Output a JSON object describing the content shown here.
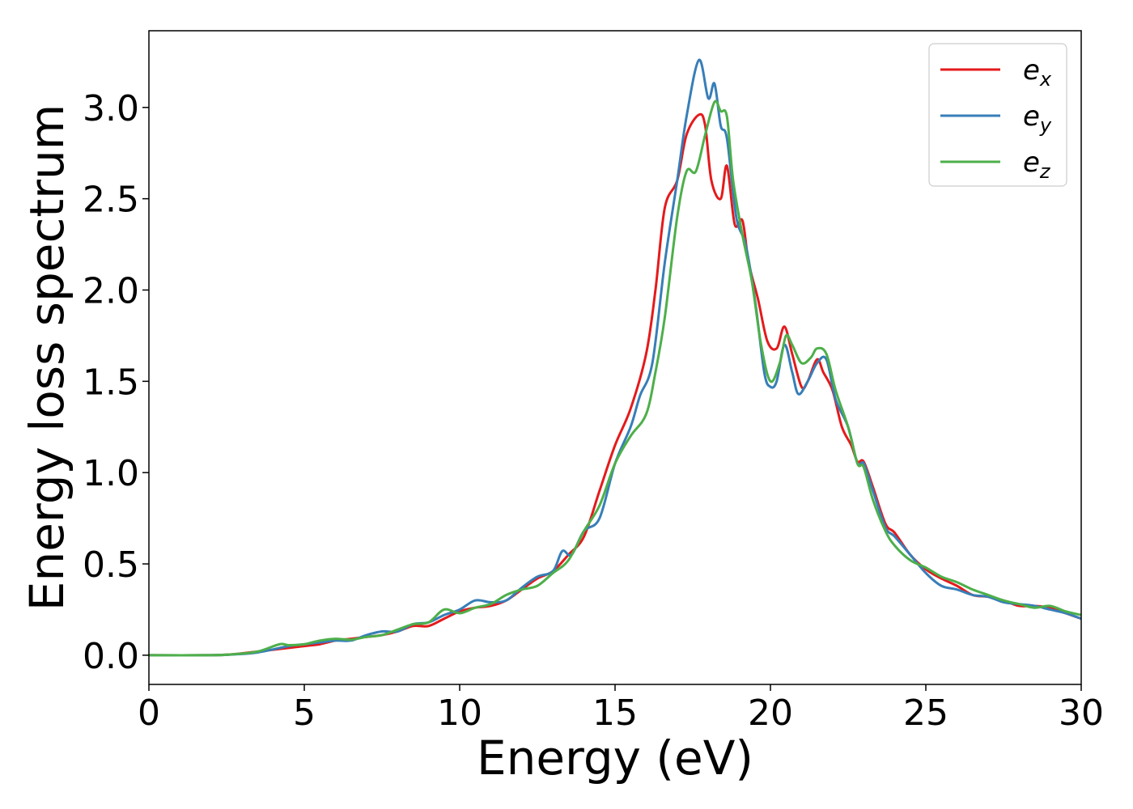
{
  "chart_data": {
    "type": "line",
    "xlabel": "Energy (eV)",
    "ylabel": "Energy loss spectrum",
    "xlim": [
      0,
      30
    ],
    "ylim": [
      -0.16,
      3.42
    ],
    "xticks": [
      "0",
      "5",
      "10",
      "15",
      "20",
      "25",
      "30"
    ],
    "yticks": [
      "0.0",
      "0.5",
      "1.0",
      "1.5",
      "2.0",
      "2.5",
      "3.0"
    ],
    "grid": false,
    "legend_position": "top-right",
    "series": [
      {
        "name": "e_x",
        "label_main": "e",
        "label_sub": "x",
        "color": "#e41a1c",
        "points": [
          [
            0,
            0
          ],
          [
            2,
            0
          ],
          [
            2.7,
            0.005
          ],
          [
            3.5,
            0.02
          ],
          [
            4.5,
            0.04
          ],
          [
            5,
            0.05
          ],
          [
            5.5,
            0.06
          ],
          [
            6,
            0.08
          ],
          [
            6.5,
            0.09
          ],
          [
            7,
            0.1
          ],
          [
            7.5,
            0.11
          ],
          [
            8,
            0.13
          ],
          [
            8.5,
            0.16
          ],
          [
            9,
            0.16
          ],
          [
            9.5,
            0.2
          ],
          [
            10,
            0.24
          ],
          [
            10.5,
            0.26
          ],
          [
            11,
            0.27
          ],
          [
            11.5,
            0.3
          ],
          [
            12,
            0.36
          ],
          [
            12.5,
            0.42
          ],
          [
            13,
            0.46
          ],
          [
            13.5,
            0.55
          ],
          [
            14,
            0.65
          ],
          [
            14.5,
            0.9
          ],
          [
            15,
            1.15
          ],
          [
            15.5,
            1.35
          ],
          [
            16,
            1.65
          ],
          [
            16.3,
            2.0
          ],
          [
            16.6,
            2.45
          ],
          [
            17,
            2.6
          ],
          [
            17.3,
            2.85
          ],
          [
            17.7,
            2.96
          ],
          [
            17.9,
            2.9
          ],
          [
            18.1,
            2.6
          ],
          [
            18.4,
            2.5
          ],
          [
            18.6,
            2.68
          ],
          [
            18.85,
            2.36
          ],
          [
            19.1,
            2.38
          ],
          [
            19.3,
            2.15
          ],
          [
            19.6,
            1.95
          ],
          [
            19.9,
            1.72
          ],
          [
            20.2,
            1.68
          ],
          [
            20.45,
            1.8
          ],
          [
            20.7,
            1.65
          ],
          [
            21,
            1.47
          ],
          [
            21.2,
            1.5
          ],
          [
            21.5,
            1.62
          ],
          [
            21.7,
            1.55
          ],
          [
            22,
            1.45
          ],
          [
            22.3,
            1.25
          ],
          [
            22.6,
            1.15
          ],
          [
            22.8,
            1.06
          ],
          [
            23,
            1.06
          ],
          [
            23.3,
            0.92
          ],
          [
            23.7,
            0.72
          ],
          [
            24,
            0.67
          ],
          [
            24.5,
            0.55
          ],
          [
            25,
            0.47
          ],
          [
            25.5,
            0.42
          ],
          [
            26,
            0.38
          ],
          [
            26.5,
            0.33
          ],
          [
            27,
            0.32
          ],
          [
            27.5,
            0.3
          ],
          [
            28,
            0.27
          ],
          [
            28.5,
            0.27
          ],
          [
            29,
            0.26
          ],
          [
            29.5,
            0.23
          ],
          [
            30,
            0.2
          ]
        ]
      },
      {
        "name": "e_y",
        "label_main": "e",
        "label_sub": "y",
        "color": "#377eb8",
        "points": [
          [
            0,
            0
          ],
          [
            2,
            0
          ],
          [
            2.8,
            0.005
          ],
          [
            3.5,
            0.015
          ],
          [
            4.5,
            0.05
          ],
          [
            5,
            0.06
          ],
          [
            5.5,
            0.07
          ],
          [
            6,
            0.08
          ],
          [
            6.5,
            0.08
          ],
          [
            7,
            0.11
          ],
          [
            7.5,
            0.13
          ],
          [
            8,
            0.13
          ],
          [
            8.5,
            0.17
          ],
          [
            9,
            0.18
          ],
          [
            9.5,
            0.22
          ],
          [
            10,
            0.25
          ],
          [
            10.5,
            0.3
          ],
          [
            11,
            0.29
          ],
          [
            11.5,
            0.3
          ],
          [
            12,
            0.37
          ],
          [
            12.5,
            0.43
          ],
          [
            13,
            0.46
          ],
          [
            13.3,
            0.57
          ],
          [
            13.6,
            0.55
          ],
          [
            14,
            0.68
          ],
          [
            14.5,
            0.75
          ],
          [
            15,
            1.05
          ],
          [
            15.5,
            1.25
          ],
          [
            15.8,
            1.42
          ],
          [
            16.2,
            1.6
          ],
          [
            16.6,
            2.15
          ],
          [
            17,
            2.6
          ],
          [
            17.3,
            2.95
          ],
          [
            17.7,
            3.26
          ],
          [
            18,
            3.05
          ],
          [
            18.2,
            3.13
          ],
          [
            18.4,
            2.9
          ],
          [
            18.6,
            2.83
          ],
          [
            18.9,
            2.4
          ],
          [
            19.2,
            2.25
          ],
          [
            19.5,
            1.95
          ],
          [
            19.8,
            1.55
          ],
          [
            20,
            1.47
          ],
          [
            20.2,
            1.5
          ],
          [
            20.45,
            1.7
          ],
          [
            20.7,
            1.55
          ],
          [
            20.9,
            1.43
          ],
          [
            21.2,
            1.5
          ],
          [
            21.5,
            1.6
          ],
          [
            21.8,
            1.62
          ],
          [
            22.1,
            1.4
          ],
          [
            22.5,
            1.25
          ],
          [
            22.8,
            1.05
          ],
          [
            23,
            1.05
          ],
          [
            23.3,
            0.9
          ],
          [
            23.7,
            0.7
          ],
          [
            24,
            0.65
          ],
          [
            24.5,
            0.55
          ],
          [
            25,
            0.45
          ],
          [
            25.5,
            0.38
          ],
          [
            26,
            0.36
          ],
          [
            26.5,
            0.33
          ],
          [
            27,
            0.32
          ],
          [
            27.5,
            0.29
          ],
          [
            28,
            0.28
          ],
          [
            28.5,
            0.27
          ],
          [
            29,
            0.25
          ],
          [
            29.5,
            0.23
          ],
          [
            30,
            0.2
          ]
        ]
      },
      {
        "name": "e_z",
        "label_main": "e",
        "label_sub": "z",
        "color": "#4daf4a",
        "points": [
          [
            0,
            0
          ],
          [
            2,
            0
          ],
          [
            2.7,
            0.005
          ],
          [
            3.5,
            0.02
          ],
          [
            4.2,
            0.06
          ],
          [
            4.5,
            0.055
          ],
          [
            5,
            0.06
          ],
          [
            5.5,
            0.08
          ],
          [
            6,
            0.09
          ],
          [
            6.5,
            0.085
          ],
          [
            7,
            0.1
          ],
          [
            7.5,
            0.11
          ],
          [
            8,
            0.14
          ],
          [
            8.5,
            0.17
          ],
          [
            9,
            0.18
          ],
          [
            9.5,
            0.25
          ],
          [
            10,
            0.23
          ],
          [
            10.5,
            0.26
          ],
          [
            11,
            0.28
          ],
          [
            11.5,
            0.33
          ],
          [
            12,
            0.36
          ],
          [
            12.5,
            0.38
          ],
          [
            13,
            0.45
          ],
          [
            13.5,
            0.52
          ],
          [
            14,
            0.68
          ],
          [
            14.5,
            0.82
          ],
          [
            15,
            1.05
          ],
          [
            15.5,
            1.2
          ],
          [
            16,
            1.32
          ],
          [
            16.3,
            1.55
          ],
          [
            16.6,
            1.85
          ],
          [
            17,
            2.4
          ],
          [
            17.3,
            2.65
          ],
          [
            17.6,
            2.65
          ],
          [
            17.9,
            2.85
          ],
          [
            18.2,
            3.03
          ],
          [
            18.4,
            2.98
          ],
          [
            18.6,
            2.95
          ],
          [
            18.8,
            2.6
          ],
          [
            19.1,
            2.3
          ],
          [
            19.4,
            2.05
          ],
          [
            19.7,
            1.7
          ],
          [
            20,
            1.5
          ],
          [
            20.3,
            1.6
          ],
          [
            20.5,
            1.75
          ],
          [
            20.7,
            1.7
          ],
          [
            21,
            1.6
          ],
          [
            21.3,
            1.63
          ],
          [
            21.5,
            1.68
          ],
          [
            21.8,
            1.65
          ],
          [
            22.1,
            1.45
          ],
          [
            22.5,
            1.25
          ],
          [
            22.8,
            1.05
          ],
          [
            23,
            1.03
          ],
          [
            23.3,
            0.85
          ],
          [
            23.7,
            0.68
          ],
          [
            24,
            0.6
          ],
          [
            24.5,
            0.52
          ],
          [
            25,
            0.48
          ],
          [
            25.5,
            0.43
          ],
          [
            26,
            0.4
          ],
          [
            26.5,
            0.36
          ],
          [
            27,
            0.33
          ],
          [
            27.5,
            0.3
          ],
          [
            28,
            0.28
          ],
          [
            28.5,
            0.26
          ],
          [
            29,
            0.27
          ],
          [
            29.5,
            0.24
          ],
          [
            30,
            0.22
          ]
        ]
      }
    ]
  }
}
